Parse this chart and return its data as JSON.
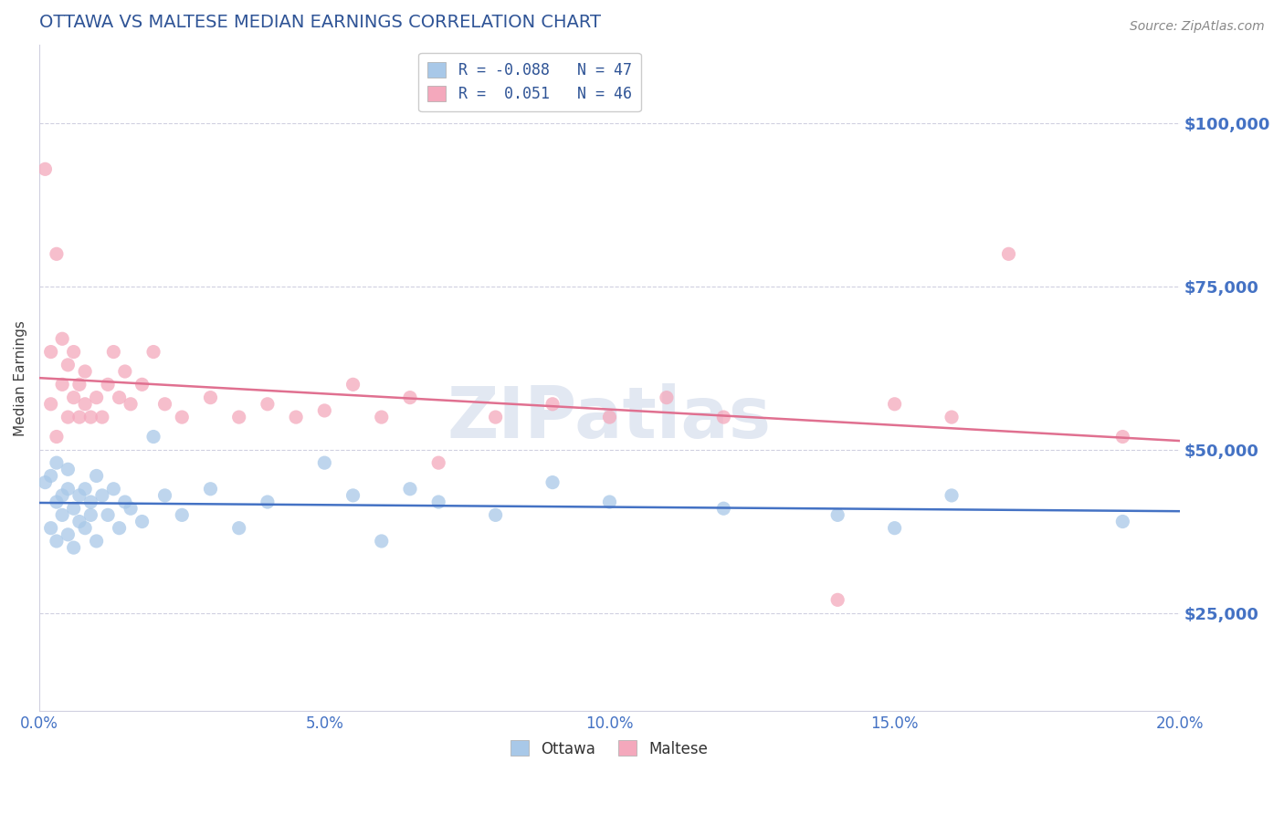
{
  "title": "OTTAWA VS MALTESE MEDIAN EARNINGS CORRELATION CHART",
  "source_text": "Source: ZipAtlas.com",
  "ylabel": "Median Earnings",
  "xlim": [
    0.0,
    0.2
  ],
  "ylim": [
    10000,
    112000
  ],
  "yticks": [
    25000,
    50000,
    75000,
    100000
  ],
  "xticks": [
    0.0,
    0.05,
    0.1,
    0.15,
    0.2
  ],
  "xtick_labels": [
    "0.0%",
    "5.0%",
    "10.0%",
    "15.0%",
    "20.0%"
  ],
  "ottawa_color": "#a8c8e8",
  "maltese_color": "#f4a8bc",
  "ottawa_line_color": "#4472c4",
  "maltese_line_color": "#e07090",
  "title_color": "#2f5496",
  "axis_label_color": "#404040",
  "tick_label_color": "#4472c4",
  "grid_color": "#d0d0e0",
  "r_ottawa": -0.088,
  "n_ottawa": 47,
  "r_maltese": 0.051,
  "n_maltese": 46,
  "ottawa_x": [
    0.001,
    0.002,
    0.002,
    0.003,
    0.003,
    0.003,
    0.004,
    0.004,
    0.005,
    0.005,
    0.005,
    0.006,
    0.006,
    0.007,
    0.007,
    0.008,
    0.008,
    0.009,
    0.009,
    0.01,
    0.01,
    0.011,
    0.012,
    0.013,
    0.014,
    0.015,
    0.016,
    0.018,
    0.02,
    0.022,
    0.025,
    0.03,
    0.035,
    0.04,
    0.05,
    0.055,
    0.06,
    0.065,
    0.07,
    0.08,
    0.09,
    0.1,
    0.12,
    0.14,
    0.15,
    0.16,
    0.19
  ],
  "ottawa_y": [
    45000,
    46000,
    38000,
    42000,
    36000,
    48000,
    40000,
    43000,
    44000,
    37000,
    47000,
    35000,
    41000,
    39000,
    43000,
    38000,
    44000,
    40000,
    42000,
    36000,
    46000,
    43000,
    40000,
    44000,
    38000,
    42000,
    41000,
    39000,
    52000,
    43000,
    40000,
    44000,
    38000,
    42000,
    48000,
    43000,
    36000,
    44000,
    42000,
    40000,
    45000,
    42000,
    41000,
    40000,
    38000,
    43000,
    39000
  ],
  "maltese_x": [
    0.001,
    0.002,
    0.002,
    0.003,
    0.003,
    0.004,
    0.004,
    0.005,
    0.005,
    0.006,
    0.006,
    0.007,
    0.007,
    0.008,
    0.008,
    0.009,
    0.01,
    0.011,
    0.012,
    0.013,
    0.014,
    0.015,
    0.016,
    0.018,
    0.02,
    0.022,
    0.025,
    0.03,
    0.035,
    0.04,
    0.045,
    0.05,
    0.055,
    0.06,
    0.065,
    0.07,
    0.08,
    0.09,
    0.1,
    0.11,
    0.12,
    0.14,
    0.15,
    0.16,
    0.17,
    0.19
  ],
  "maltese_y": [
    93000,
    57000,
    65000,
    52000,
    80000,
    60000,
    67000,
    55000,
    63000,
    58000,
    65000,
    55000,
    60000,
    57000,
    62000,
    55000,
    58000,
    55000,
    60000,
    65000,
    58000,
    62000,
    57000,
    60000,
    65000,
    57000,
    55000,
    58000,
    55000,
    57000,
    55000,
    56000,
    60000,
    55000,
    58000,
    48000,
    55000,
    57000,
    55000,
    58000,
    55000,
    27000,
    57000,
    55000,
    80000,
    52000
  ]
}
